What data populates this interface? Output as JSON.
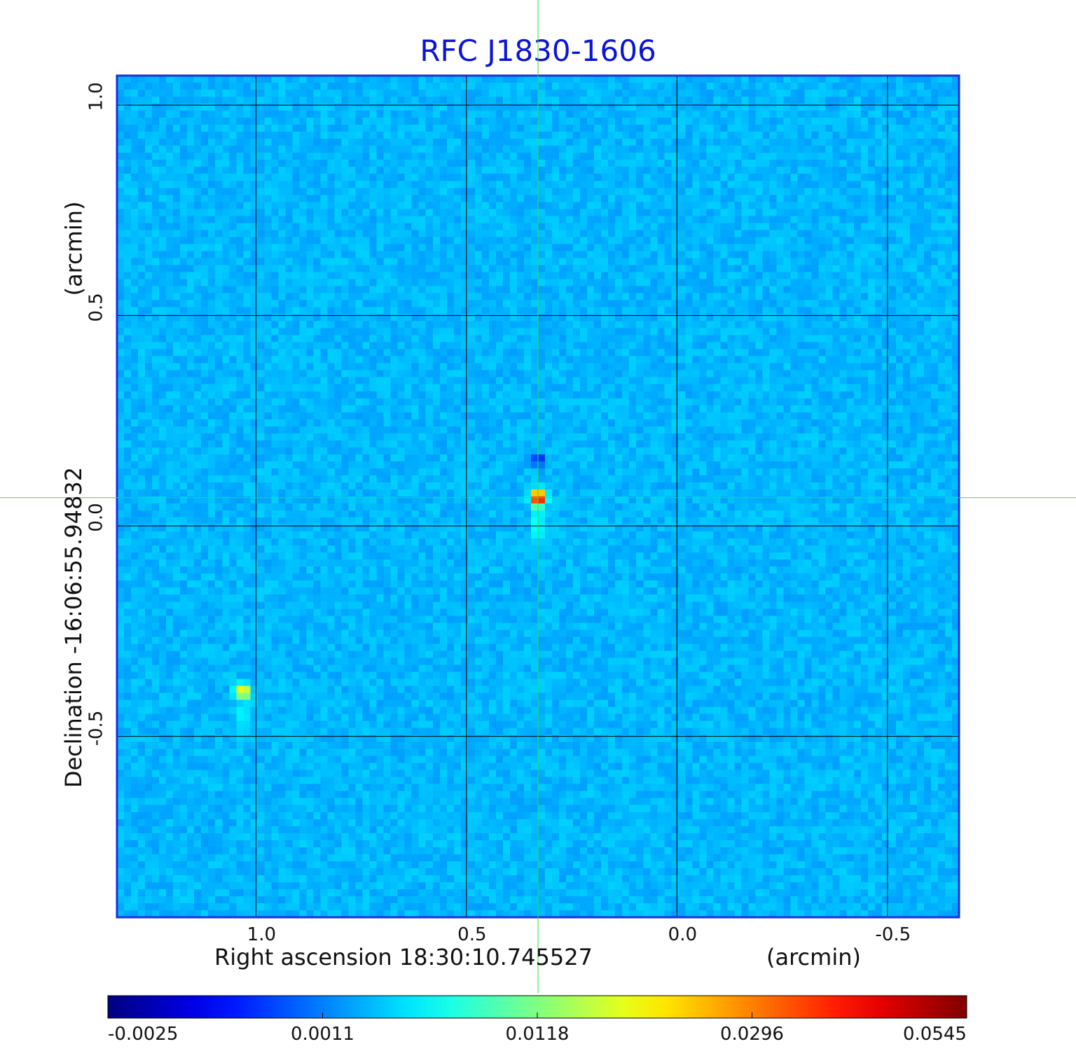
{
  "chart_data": {
    "type": "heatmap",
    "title": "RFC J1830-1606",
    "xlabel": "Right ascension  18:30:10.745527",
    "xunit": "(arcmin)",
    "ylabel": "Declination  -16:06:55.94832",
    "yunit": "(arcmin)",
    "xlim": [
      1.33,
      -0.67
    ],
    "ylim": [
      -0.93,
      1.07
    ],
    "x_ticks": [
      {
        "value": 1.0,
        "label": "1.0"
      },
      {
        "value": 0.5,
        "label": "0.5"
      },
      {
        "value": 0.0,
        "label": "0.0"
      },
      {
        "value": -0.5,
        "label": "-0.5"
      }
    ],
    "y_ticks": [
      {
        "value": 1.0,
        "label": "1.0"
      },
      {
        "value": 0.5,
        "label": "0.5"
      },
      {
        "value": 0.0,
        "label": "0.0"
      },
      {
        "value": -0.5,
        "label": "-0.5"
      }
    ],
    "grid": true,
    "crosshair": {
      "x": 0.33,
      "y": 0.067,
      "color": "#33dd33"
    },
    "sources": [
      {
        "x": 0.33,
        "y": 0.067,
        "peak": 0.0545
      },
      {
        "x": 1.03,
        "y": -0.393,
        "peak": 0.022
      }
    ],
    "colorbar": {
      "colormap": "jet",
      "labels": [
        "-0.0025",
        "0.0011",
        "0.0118",
        "0.0296",
        "0.0545"
      ]
    }
  }
}
